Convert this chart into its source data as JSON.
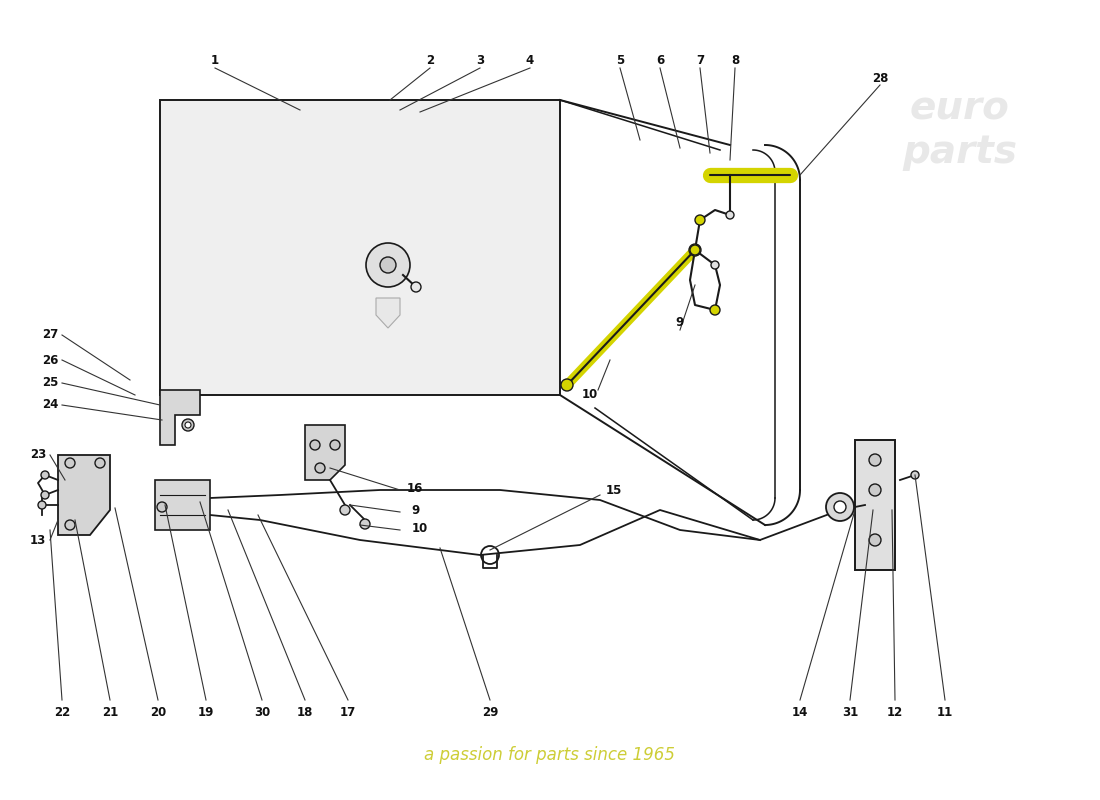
{
  "bg_color": "#ffffff",
  "line_color": "#1a1a1a",
  "hood_fill": "#f0f0f0",
  "hood_edge": "#1a1a1a",
  "yellow_color": "#d4d400",
  "watermark_text": "a passion for parts since 1965",
  "watermark_color": "#c8c820",
  "label_fontsize": 8.5,
  "fig_w": 11.0,
  "fig_h": 8.0,
  "dpi": 100
}
